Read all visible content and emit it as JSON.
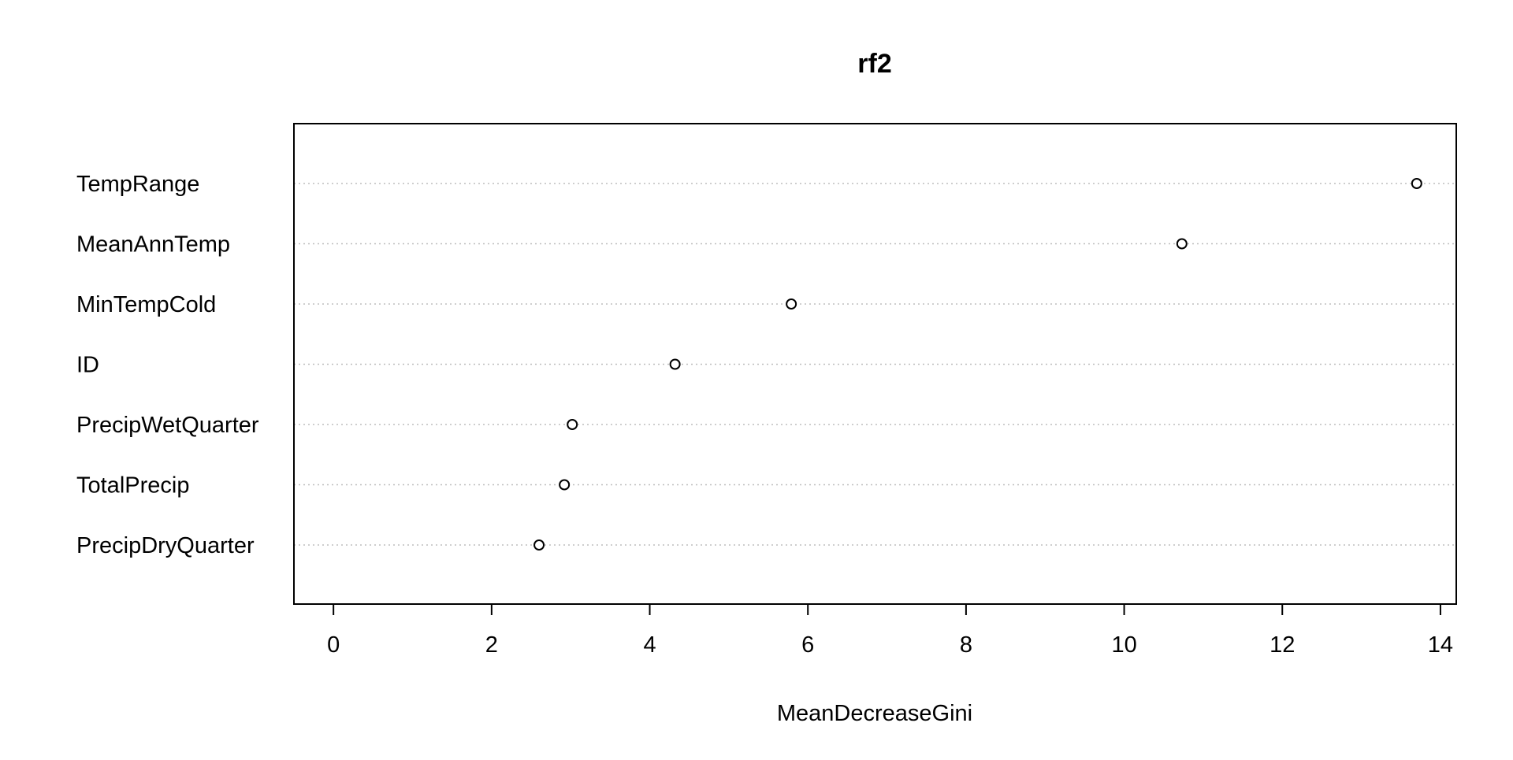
{
  "chart_data": {
    "type": "scatter",
    "title": "rf2",
    "xlabel": "MeanDecreaseGini",
    "ylabel": "",
    "xlim": [
      -0.5,
      14.2
    ],
    "xticks": [
      0,
      2,
      4,
      6,
      8,
      10,
      12,
      14
    ],
    "grid": "dotted horizontal guide lines",
    "categories": [
      "TempRange",
      "MeanAnnTemp",
      "MinTempCold",
      "ID",
      "PrecipWetQuarter",
      "TotalPrecip",
      "PrecipDryQuarter"
    ],
    "values": [
      13.7,
      10.73,
      5.79,
      4.32,
      3.02,
      2.92,
      2.6
    ],
    "colors": {
      "axis": "#000000",
      "grid": "#bebebe",
      "point_stroke": "#000000",
      "background": "#ffffff"
    }
  }
}
